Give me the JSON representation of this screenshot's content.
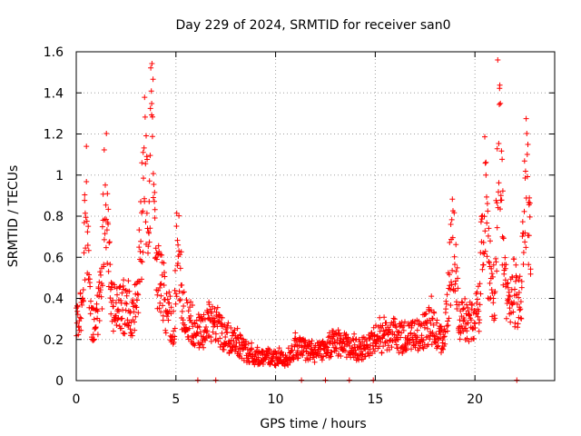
{
  "chart_data": {
    "type": "scatter",
    "title": "Day 229 of 2024, SRMTID for receiver san0",
    "xlabel": "GPS time / hours",
    "ylabel": "SRMTID / TECUs",
    "xlim": [
      0,
      24
    ],
    "ylim": [
      0,
      1.6
    ],
    "xticks": [
      0,
      5,
      10,
      15,
      20
    ],
    "yticks": [
      0,
      0.2,
      0.4,
      0.6,
      0.8,
      1,
      1.2,
      1.4,
      1.6
    ],
    "ytick_labels": [
      "0",
      "0.2",
      "0.4",
      "0.6",
      "0.8",
      "1",
      "1.2",
      "1.4",
      "1.6"
    ],
    "grid": true,
    "marker": "+",
    "color": "#ff0000",
    "series": [
      {
        "name": "SRMTID",
        "profile": [
          [
            0.0,
            0.28
          ],
          [
            0.3,
            0.32
          ],
          [
            0.5,
            0.9
          ],
          [
            0.7,
            0.32
          ],
          [
            1.0,
            0.26
          ],
          [
            1.3,
            0.5
          ],
          [
            1.45,
            1.12
          ],
          [
            1.6,
            0.6
          ],
          [
            1.8,
            0.35
          ],
          [
            2.1,
            0.35
          ],
          [
            2.5,
            0.33
          ],
          [
            2.8,
            0.32
          ],
          [
            3.1,
            0.38
          ],
          [
            3.45,
            1.1
          ],
          [
            3.6,
            0.7
          ],
          [
            3.8,
            1.35
          ],
          [
            4.0,
            0.55
          ],
          [
            4.3,
            0.45
          ],
          [
            4.6,
            0.3
          ],
          [
            4.9,
            0.25
          ],
          [
            5.1,
            0.75
          ],
          [
            5.3,
            0.38
          ],
          [
            5.6,
            0.28
          ],
          [
            6.0,
            0.22
          ],
          [
            6.5,
            0.25
          ],
          [
            7.0,
            0.28
          ],
          [
            7.5,
            0.2
          ],
          [
            8.0,
            0.2
          ],
          [
            8.5,
            0.14
          ],
          [
            9.0,
            0.11
          ],
          [
            9.5,
            0.12
          ],
          [
            10.0,
            0.11
          ],
          [
            10.5,
            0.1
          ],
          [
            11.0,
            0.16
          ],
          [
            11.5,
            0.15
          ],
          [
            12.0,
            0.13
          ],
          [
            12.5,
            0.16
          ],
          [
            13.0,
            0.19
          ],
          [
            13.5,
            0.17
          ],
          [
            14.0,
            0.15
          ],
          [
            14.5,
            0.16
          ],
          [
            15.0,
            0.2
          ],
          [
            15.5,
            0.21
          ],
          [
            16.0,
            0.21
          ],
          [
            16.5,
            0.2
          ],
          [
            17.0,
            0.22
          ],
          [
            17.5,
            0.24
          ],
          [
            17.8,
            0.28
          ],
          [
            18.2,
            0.2
          ],
          [
            18.5,
            0.22
          ],
          [
            18.9,
            0.7
          ],
          [
            19.2,
            0.3
          ],
          [
            19.5,
            0.28
          ],
          [
            19.9,
            0.29
          ],
          [
            20.2,
            0.35
          ],
          [
            20.5,
            1.0
          ],
          [
            20.7,
            0.5
          ],
          [
            21.0,
            0.4
          ],
          [
            21.2,
            1.3
          ],
          [
            21.5,
            0.45
          ],
          [
            21.8,
            0.4
          ],
          [
            22.0,
            0.4
          ],
          [
            22.3,
            0.38
          ],
          [
            22.6,
            1.05
          ],
          [
            22.8,
            0.6
          ]
        ],
        "zero_points": [
          6.1,
          7.0,
          11.3,
          12.5,
          13.7,
          14.9,
          22.1
        ]
      }
    ]
  }
}
